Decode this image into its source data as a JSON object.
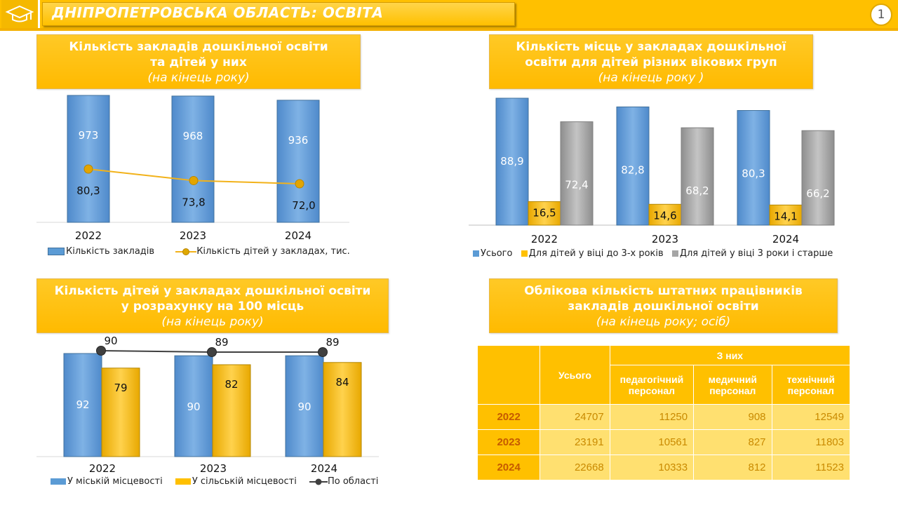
{
  "header": {
    "title": "ДНІПРОПЕТРОВСЬКА ОБЛАСТЬ: ОСВІТА",
    "page_number": "1",
    "icon": "graduation-cap-icon"
  },
  "colors": {
    "blue": "#5B9BD5",
    "gold": "#FFC000",
    "gray": "#A5A5A5",
    "line_gold": "#F2B21A",
    "line_dark": "#404040"
  },
  "sections": {
    "s1": {
      "line1": "Кількість закладів дошкільної освіти",
      "line2": "та дітей у них",
      "sub": "(на кінець року)"
    },
    "s2": {
      "line1": "Кількість місць у закладах дошкільної",
      "line2": "освіти для дітей різних вікових груп",
      "sub": "(на кінець року )"
    },
    "s3": {
      "line1": "Кількість дітей у закладах дошкільної освіти",
      "line2": "у розрахунку на 100 місць",
      "sub": "(на кінець року)"
    },
    "s4": {
      "line1": "Облікова кількість штатних працівників",
      "line2": "закладів дошкільної освіти",
      "sub": "(на кінець року; осіб)"
    }
  },
  "chart_data": [
    {
      "id": "chart1",
      "type": "bar",
      "categories": [
        "2022",
        "2023",
        "2024"
      ],
      "series": [
        {
          "name": "Кількість закладів",
          "kind": "bar",
          "values": [
            973,
            968,
            936
          ],
          "labels": [
            "973",
            "968",
            "936"
          ]
        },
        {
          "name": "Кількість дітей у закладах, тис.",
          "kind": "line",
          "values": [
            80.3,
            73.8,
            72.0
          ],
          "labels": [
            "80,3",
            "73,8",
            "72,0"
          ]
        }
      ],
      "legend_position": "bottom"
    },
    {
      "id": "chart2",
      "type": "bar",
      "categories": [
        "2022",
        "2023",
        "2024"
      ],
      "series": [
        {
          "name": "Усього",
          "values": [
            88.9,
            82.8,
            80.3
          ],
          "labels": [
            "88,9",
            "82,8",
            "80,3"
          ]
        },
        {
          "name": "Для дітей у віці до 3-х років",
          "values": [
            16.5,
            14.6,
            14.1
          ],
          "labels": [
            "16,5",
            "14,6",
            "14,1"
          ]
        },
        {
          "name": "Для дітей у віці 3 роки і старше",
          "values": [
            72.4,
            68.2,
            66.2
          ],
          "labels": [
            "72,4",
            "68,2",
            "66,2"
          ]
        }
      ],
      "legend_position": "bottom"
    },
    {
      "id": "chart3",
      "type": "bar",
      "categories": [
        "2022",
        "2023",
        "2024"
      ],
      "series": [
        {
          "name": "У міській місцевості",
          "kind": "bar",
          "values": [
            92,
            90,
            90
          ],
          "labels": [
            "92",
            "90",
            "90"
          ]
        },
        {
          "name": "У сільській місцевості",
          "kind": "bar",
          "values": [
            79,
            82,
            84
          ],
          "labels": [
            "79",
            "82",
            "84"
          ]
        },
        {
          "name": "По області",
          "kind": "line",
          "values": [
            90,
            89,
            89
          ],
          "labels": [
            "90",
            "89",
            "89"
          ]
        }
      ],
      "legend_position": "bottom"
    },
    {
      "id": "table1",
      "type": "table",
      "headers": {
        "total": "Усього",
        "group": "З них",
        "cols": [
          "педагогічний персонал",
          "медичний персонал",
          "технічний персонал"
        ]
      },
      "rows": [
        {
          "year": "2022",
          "values": [
            "24707",
            "11250",
            "908",
            "12549"
          ]
        },
        {
          "year": "2023",
          "values": [
            "23191",
            "10561",
            "827",
            "11803"
          ]
        },
        {
          "year": "2024",
          "values": [
            "22668",
            "10333",
            "812",
            "11523"
          ]
        }
      ]
    }
  ]
}
